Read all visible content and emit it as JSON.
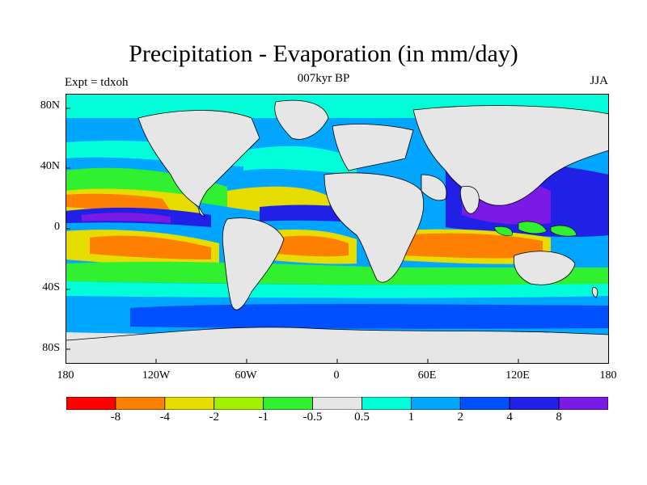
{
  "title": "Precipitation - Evaporation (in mm/day)",
  "subtitle": "007kyr BP",
  "left_string": "Expt = tdxoh",
  "right_string": "JJA",
  "lat_labels": [
    "80N",
    "40N",
    "0",
    "40S",
    "80S"
  ],
  "lon_labels": [
    "180",
    "120W",
    "60W",
    "0",
    "60E",
    "120E",
    "180"
  ],
  "colorbar": {
    "colors": [
      "#ff0000",
      "#ff8000",
      "#e6dc00",
      "#a0f000",
      "#30f030",
      "#e6e6e6",
      "#00ffd8",
      "#00a6ff",
      "#0050ff",
      "#2020e6",
      "#7a1ae6"
    ],
    "labels": [
      "-8",
      "-4",
      "-2",
      "-1",
      "-0.5",
      "0.5",
      "1",
      "2",
      "4",
      "8"
    ]
  },
  "palette": {
    "land": "#e6e6e6",
    "ocean_base": "#00a6ff",
    "coast": "#000000"
  }
}
